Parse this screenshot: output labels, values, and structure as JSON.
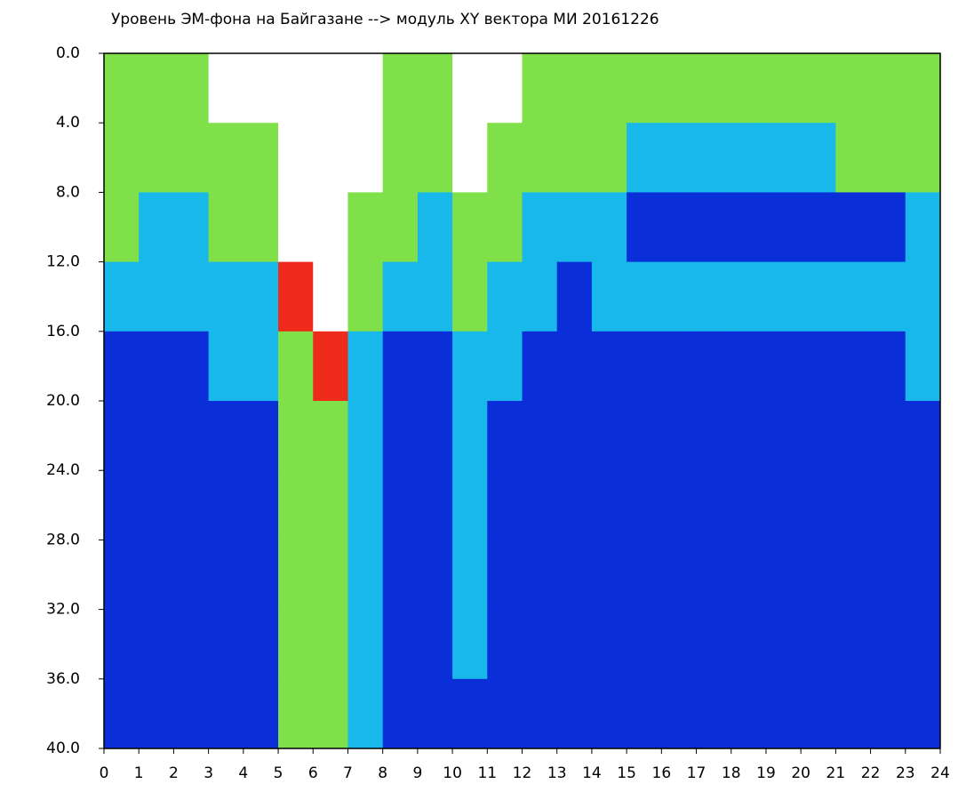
{
  "chart_data": {
    "type": "heatmap",
    "title": "Уровень ЭМ-фона на Байгазане  --> модуль XY вектора МИ  20161226",
    "xlim": [
      0,
      24
    ],
    "ylim": [
      40,
      0
    ],
    "xticks": [
      0,
      1,
      2,
      3,
      4,
      5,
      6,
      7,
      8,
      9,
      10,
      11,
      12,
      13,
      14,
      15,
      16,
      17,
      18,
      19,
      20,
      21,
      22,
      23,
      24
    ],
    "yticks": [
      {
        "value": 0,
        "label": "0.0"
      },
      {
        "value": 4,
        "label": "4.0"
      },
      {
        "value": 8,
        "label": "8.0"
      },
      {
        "value": 12,
        "label": "12.0"
      },
      {
        "value": 16,
        "label": "16.0"
      },
      {
        "value": 20,
        "label": "20.0"
      },
      {
        "value": 24,
        "label": "24.0"
      },
      {
        "value": 28,
        "label": "28.0"
      },
      {
        "value": 32,
        "label": "32.0"
      },
      {
        "value": 36,
        "label": "36.0"
      },
      {
        "value": 40,
        "label": "40.0"
      }
    ],
    "colors": [
      "#ffffff",
      "#0a2fd9",
      "#19b8ea",
      "#7fe04a",
      "#ee2a1a"
    ],
    "z": [
      [
        3,
        3,
        3,
        2,
        1,
        1,
        1,
        1,
        1,
        1
      ],
      [
        3,
        3,
        2,
        2,
        1,
        1,
        1,
        1,
        1,
        1
      ],
      [
        3,
        3,
        2,
        2,
        1,
        1,
        1,
        1,
        1,
        1
      ],
      [
        0,
        3,
        3,
        2,
        2,
        1,
        1,
        1,
        1,
        1
      ],
      [
        0,
        3,
        3,
        2,
        2,
        1,
        1,
        1,
        1,
        1
      ],
      [
        0,
        0,
        0,
        4,
        3,
        3,
        3,
        3,
        3,
        3
      ],
      [
        0,
        0,
        0,
        0,
        4,
        3,
        3,
        3,
        3,
        3
      ],
      [
        0,
        0,
        3,
        3,
        2,
        2,
        2,
        2,
        2,
        2
      ],
      [
        3,
        3,
        3,
        2,
        1,
        1,
        1,
        1,
        1,
        1
      ],
      [
        3,
        3,
        2,
        2,
        1,
        1,
        1,
        1,
        1,
        1
      ],
      [
        0,
        0,
        3,
        3,
        2,
        2,
        2,
        2,
        2,
        1
      ],
      [
        0,
        3,
        3,
        2,
        2,
        1,
        1,
        1,
        1,
        1
      ],
      [
        3,
        3,
        2,
        2,
        1,
        1,
        1,
        1,
        1,
        1
      ],
      [
        3,
        3,
        2,
        1,
        1,
        1,
        1,
        1,
        1,
        1
      ],
      [
        3,
        3,
        2,
        2,
        1,
        1,
        1,
        1,
        1,
        1
      ],
      [
        3,
        2,
        1,
        2,
        1,
        1,
        1,
        1,
        1,
        1
      ],
      [
        3,
        2,
        1,
        2,
        1,
        1,
        1,
        1,
        1,
        1
      ],
      [
        3,
        2,
        1,
        2,
        1,
        1,
        1,
        1,
        1,
        1
      ],
      [
        3,
        2,
        1,
        2,
        1,
        1,
        1,
        1,
        1,
        1
      ],
      [
        3,
        2,
        1,
        2,
        1,
        1,
        1,
        1,
        1,
        1
      ],
      [
        3,
        2,
        1,
        2,
        1,
        1,
        1,
        1,
        1,
        1
      ],
      [
        3,
        3,
        1,
        2,
        1,
        1,
        1,
        1,
        1,
        1
      ],
      [
        3,
        3,
        1,
        2,
        1,
        1,
        1,
        1,
        1,
        1
      ],
      [
        3,
        3,
        2,
        2,
        2,
        1,
        1,
        1,
        1,
        1
      ]
    ]
  }
}
